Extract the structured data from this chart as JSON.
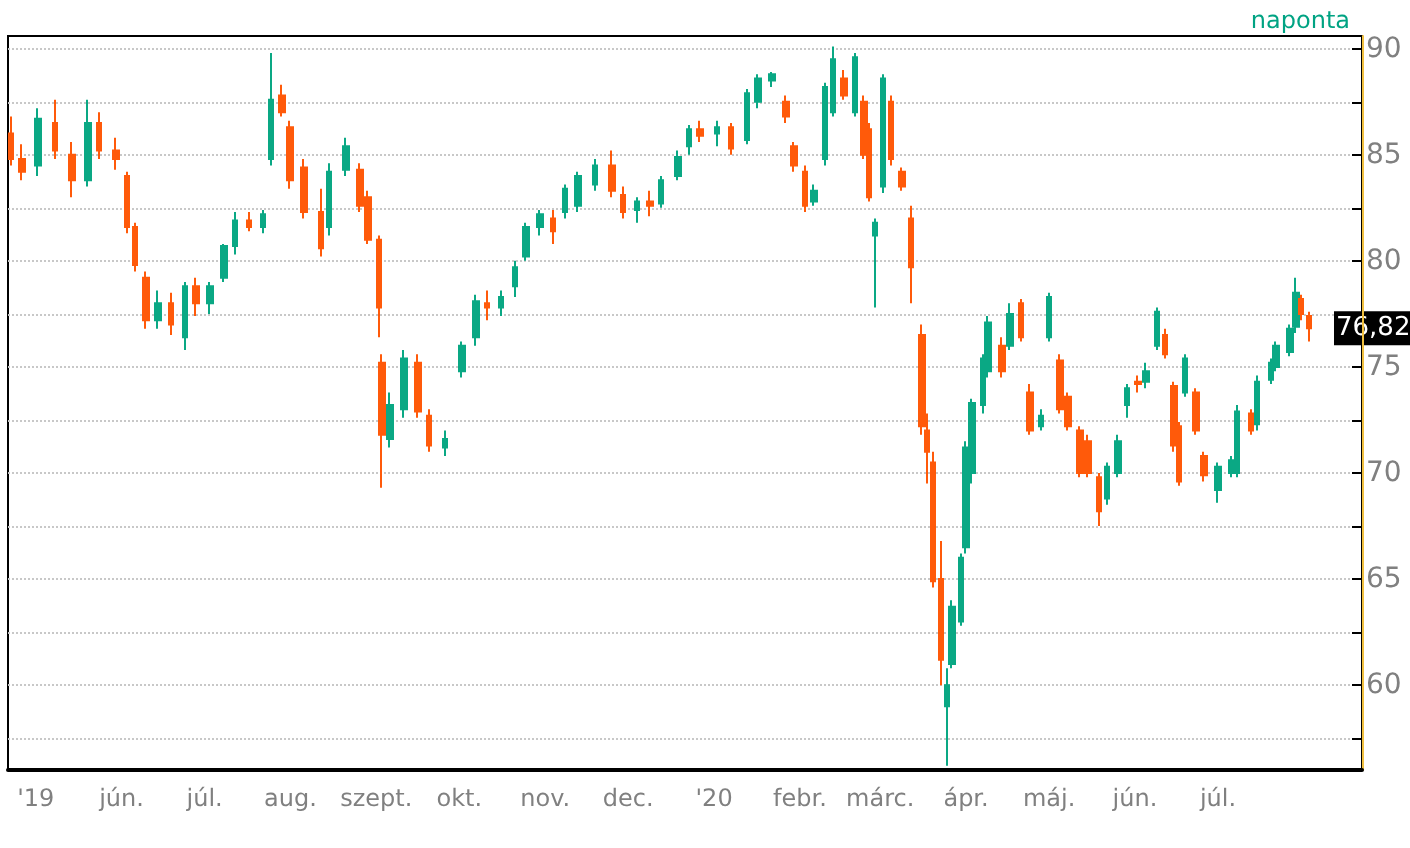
{
  "chart_data": {
    "type": "candlestick",
    "annotations": [
      "naponta",
      {
        "text": "76,82",
        "x": "2020-08-03",
        "y": 76.82
      }
    ],
    "x": [
      "2019-04-22",
      "2019-04-26",
      "2019-05-02",
      "2019-05-08",
      "2019-05-14",
      "2019-05-20",
      "2019-05-24",
      "2019-05-30",
      "2019-06-03",
      "2019-06-06",
      "2019-06-10",
      "2019-06-14",
      "2019-06-19",
      "2019-06-24",
      "2019-06-28",
      "2019-07-03",
      "2019-07-08",
      "2019-07-12",
      "2019-07-17",
      "2019-07-22",
      "2019-07-25",
      "2019-07-29",
      "2019-08-01",
      "2019-08-06",
      "2019-08-12",
      "2019-08-15",
      "2019-08-21",
      "2019-08-26",
      "2019-08-29",
      "2019-09-02",
      "2019-09-03",
      "2019-09-06",
      "2019-09-11",
      "2019-09-16",
      "2019-09-20",
      "2019-09-26",
      "2019-10-02",
      "2019-10-07",
      "2019-10-11",
      "2019-10-16",
      "2019-10-21",
      "2019-10-25",
      "2019-10-30",
      "2019-11-04",
      "2019-11-08",
      "2019-11-13",
      "2019-11-19",
      "2019-11-25",
      "2019-11-29",
      "2019-12-04",
      "2019-12-09",
      "2019-12-13",
      "2019-12-19",
      "2019-12-23",
      "2019-12-27",
      "2020-01-02",
      "2020-01-07",
      "2020-01-13",
      "2020-01-17",
      "2020-01-22",
      "2020-01-27",
      "2020-01-30",
      "2020-02-03",
      "2020-02-06",
      "2020-02-10",
      "2020-02-13",
      "2020-02-17",
      "2020-02-21",
      "2020-02-24",
      "2020-02-26",
      "2020-02-28",
      "2020-03-02",
      "2020-03-05",
      "2020-03-09",
      "2020-03-12",
      "2020-03-16",
      "2020-03-18",
      "2020-03-20",
      "2020-03-23",
      "2020-03-25",
      "2020-03-27",
      "2020-03-30",
      "2020-04-01",
      "2020-04-03",
      "2020-04-07",
      "2020-04-09",
      "2020-04-14",
      "2020-04-17",
      "2020-04-21",
      "2020-04-24",
      "2020-04-28",
      "2020-05-01",
      "2020-05-05",
      "2020-05-08",
      "2020-05-12",
      "2020-05-15",
      "2020-05-19",
      "2020-05-22",
      "2020-05-26",
      "2020-05-29",
      "2020-06-02",
      "2020-06-05",
      "2020-06-09",
      "2020-06-12",
      "2020-06-15",
      "2020-06-17",
      "2020-06-19",
      "2020-06-23",
      "2020-06-26",
      "2020-07-01",
      "2020-07-06",
      "2020-07-08",
      "2020-07-13",
      "2020-07-15",
      "2020-07-20",
      "2020-07-22",
      "2020-07-27",
      "2020-07-29",
      "2020-07-31",
      "2020-08-03"
    ],
    "ohlc": [
      [
        86.0,
        86.8,
        84.5,
        84.8
      ],
      [
        84.8,
        85.5,
        83.8,
        84.2
      ],
      [
        84.5,
        87.2,
        84.0,
        86.7
      ],
      [
        86.5,
        87.6,
        84.8,
        85.2
      ],
      [
        85.0,
        85.6,
        83.0,
        83.8
      ],
      [
        83.8,
        87.6,
        83.5,
        86.5
      ],
      [
        86.5,
        87.0,
        84.8,
        85.2
      ],
      [
        85.2,
        85.8,
        84.3,
        84.8
      ],
      [
        84.0,
        84.2,
        81.3,
        81.6
      ],
      [
        81.6,
        81.8,
        79.5,
        79.8
      ],
      [
        79.2,
        79.5,
        76.8,
        77.2
      ],
      [
        77.2,
        78.6,
        76.8,
        78.0
      ],
      [
        78.0,
        78.5,
        76.5,
        77.0
      ],
      [
        76.4,
        79.0,
        75.8,
        78.8
      ],
      [
        78.8,
        79.2,
        77.4,
        78.0
      ],
      [
        78.0,
        79.0,
        77.5,
        78.8
      ],
      [
        79.2,
        80.8,
        79.0,
        80.7
      ],
      [
        80.7,
        82.3,
        80.3,
        81.9
      ],
      [
        81.9,
        82.3,
        81.4,
        81.6
      ],
      [
        81.6,
        82.4,
        81.3,
        82.2
      ],
      [
        84.8,
        89.8,
        84.5,
        87.6
      ],
      [
        87.8,
        88.3,
        86.8,
        87.0
      ],
      [
        86.3,
        86.6,
        83.4,
        83.8
      ],
      [
        84.4,
        84.8,
        82.0,
        82.3
      ],
      [
        82.3,
        83.4,
        80.2,
        80.6
      ],
      [
        81.6,
        84.6,
        81.2,
        84.2
      ],
      [
        84.3,
        85.8,
        84.0,
        85.4
      ],
      [
        84.3,
        84.6,
        82.3,
        82.6
      ],
      [
        83.0,
        83.3,
        80.8,
        81.0
      ],
      [
        81.0,
        81.2,
        76.4,
        77.8
      ],
      [
        75.2,
        75.6,
        69.3,
        71.8
      ],
      [
        71.6,
        73.8,
        71.2,
        73.2
      ],
      [
        73.0,
        75.8,
        72.6,
        75.4
      ],
      [
        75.2,
        75.6,
        72.6,
        72.9
      ],
      [
        72.7,
        73.0,
        71.0,
        71.3
      ],
      [
        71.2,
        72.0,
        70.8,
        71.6
      ],
      [
        74.8,
        76.2,
        74.5,
        76.0
      ],
      [
        76.4,
        78.4,
        76.0,
        78.1
      ],
      [
        78.0,
        78.6,
        77.2,
        77.8
      ],
      [
        77.8,
        78.6,
        77.4,
        78.3
      ],
      [
        78.8,
        80.0,
        78.3,
        79.7
      ],
      [
        80.2,
        81.8,
        80.0,
        81.6
      ],
      [
        81.6,
        82.4,
        81.2,
        82.2
      ],
      [
        82.0,
        82.4,
        80.8,
        81.4
      ],
      [
        82.3,
        83.6,
        82.0,
        83.4
      ],
      [
        82.6,
        84.2,
        82.3,
        84.0
      ],
      [
        83.6,
        84.8,
        83.3,
        84.5
      ],
      [
        84.5,
        85.2,
        83.0,
        83.3
      ],
      [
        83.1,
        83.5,
        82.0,
        82.3
      ],
      [
        82.4,
        83.0,
        81.8,
        82.8
      ],
      [
        82.8,
        83.3,
        82.1,
        82.6
      ],
      [
        82.7,
        84.0,
        82.5,
        83.8
      ],
      [
        84.0,
        85.2,
        83.8,
        84.9
      ],
      [
        85.4,
        86.4,
        85.0,
        86.2
      ],
      [
        86.2,
        86.6,
        85.6,
        85.9
      ],
      [
        86.0,
        86.6,
        85.4,
        86.3
      ],
      [
        86.3,
        86.5,
        85.0,
        85.3
      ],
      [
        85.7,
        88.1,
        85.5,
        87.9
      ],
      [
        87.5,
        88.8,
        87.2,
        88.6
      ],
      [
        88.5,
        88.9,
        88.2,
        88.8
      ],
      [
        87.5,
        87.8,
        86.5,
        86.8
      ],
      [
        85.4,
        85.6,
        84.2,
        84.5
      ],
      [
        84.2,
        84.5,
        82.3,
        82.6
      ],
      [
        82.8,
        83.6,
        82.6,
        83.3
      ],
      [
        84.8,
        88.4,
        84.5,
        88.2
      ],
      [
        87.0,
        90.1,
        86.8,
        89.5
      ],
      [
        88.6,
        89.0,
        87.6,
        87.8
      ],
      [
        87.0,
        89.8,
        86.8,
        89.6
      ],
      [
        87.5,
        87.8,
        84.8,
        85.0
      ],
      [
        86.2,
        86.5,
        82.8,
        83.0
      ],
      [
        81.2,
        82.0,
        77.8,
        81.8
      ],
      [
        83.5,
        88.8,
        83.2,
        88.6
      ],
      [
        87.5,
        87.8,
        84.5,
        84.8
      ],
      [
        84.2,
        84.4,
        83.3,
        83.5
      ],
      [
        82.0,
        82.6,
        78.0,
        79.7
      ],
      [
        76.5,
        77.0,
        71.8,
        72.2
      ],
      [
        72.0,
        72.8,
        69.5,
        71.0
      ],
      [
        70.5,
        71.0,
        64.6,
        64.9
      ],
      [
        65.0,
        66.8,
        60.0,
        61.2
      ],
      [
        59.0,
        60.8,
        56.2,
        60.0
      ],
      [
        61.0,
        64.0,
        60.8,
        63.7
      ],
      [
        63.0,
        66.2,
        62.8,
        66.0
      ],
      [
        66.5,
        71.5,
        66.2,
        71.2
      ],
      [
        70.0,
        73.5,
        69.5,
        73.3
      ],
      [
        73.2,
        75.6,
        72.8,
        75.4
      ],
      [
        74.8,
        77.4,
        74.5,
        77.1
      ],
      [
        76.0,
        76.4,
        74.5,
        74.8
      ],
      [
        76.0,
        78.0,
        75.8,
        77.5
      ],
      [
        78.0,
        78.2,
        76.2,
        76.4
      ],
      [
        73.8,
        74.2,
        71.8,
        72.0
      ],
      [
        72.2,
        73.0,
        72.0,
        72.7
      ],
      [
        76.4,
        78.5,
        76.2,
        78.3
      ],
      [
        75.3,
        75.6,
        72.8,
        73.0
      ],
      [
        73.6,
        73.8,
        72.0,
        72.2
      ],
      [
        72.0,
        72.2,
        69.8,
        70.0
      ],
      [
        71.5,
        71.8,
        69.8,
        70.0
      ],
      [
        69.8,
        70.0,
        67.5,
        68.2
      ],
      [
        68.8,
        70.5,
        68.5,
        70.3
      ],
      [
        70.0,
        71.8,
        69.8,
        71.5
      ],
      [
        73.2,
        74.2,
        72.6,
        74.0
      ],
      [
        74.3,
        74.6,
        73.8,
        74.2
      ],
      [
        74.3,
        75.2,
        74.0,
        74.8
      ],
      [
        76.0,
        77.8,
        75.8,
        77.6
      ],
      [
        76.5,
        76.8,
        75.4,
        75.6
      ],
      [
        74.1,
        74.3,
        71.0,
        71.3
      ],
      [
        72.2,
        72.4,
        69.4,
        69.6
      ],
      [
        73.8,
        75.6,
        73.6,
        75.4
      ],
      [
        73.8,
        74.0,
        71.8,
        72.0
      ],
      [
        70.8,
        71.0,
        69.6,
        69.9
      ],
      [
        69.2,
        70.5,
        68.6,
        70.3
      ],
      [
        70.0,
        70.8,
        69.8,
        70.6
      ],
      [
        70.0,
        73.2,
        69.8,
        72.9
      ],
      [
        72.8,
        73.0,
        71.8,
        72.0
      ],
      [
        72.3,
        74.6,
        72.0,
        74.3
      ],
      [
        74.4,
        75.4,
        74.2,
        75.2
      ],
      [
        75.0,
        76.2,
        74.8,
        76.0
      ],
      [
        75.7,
        77.0,
        75.5,
        76.8
      ],
      [
        76.9,
        79.2,
        76.6,
        78.5
      ],
      [
        78.2,
        78.4,
        77.2,
        77.5
      ],
      [
        77.4,
        77.6,
        76.2,
        76.82
      ]
    ],
    "colors": [
      "#ff5a0a",
      "#ff5a0a",
      "#0aa884",
      "#ff5a0a",
      "#ff5a0a",
      "#0aa884",
      "#ff5a0a",
      "#ff5a0a",
      "#ff5a0a",
      "#ff5a0a",
      "#ff5a0a",
      "#0aa884",
      "#ff5a0a",
      "#0aa884",
      "#ff5a0a",
      "#0aa884",
      "#0aa884",
      "#0aa884",
      "#ff5a0a",
      "#0aa884",
      "#0aa884",
      "#ff5a0a",
      "#ff5a0a",
      "#ff5a0a",
      "#ff5a0a",
      "#0aa884",
      "#0aa884",
      "#ff5a0a",
      "#ff5a0a",
      "#ff5a0a",
      "#ff5a0a",
      "#0aa884",
      "#0aa884",
      "#ff5a0a",
      "#ff5a0a",
      "#0aa884",
      "#0aa884",
      "#0aa884",
      "#ff5a0a",
      "#0aa884",
      "#0aa884",
      "#0aa884",
      "#0aa884",
      "#ff5a0a",
      "#0aa884",
      "#0aa884",
      "#0aa884",
      "#ff5a0a",
      "#ff5a0a",
      "#0aa884",
      "#ff5a0a",
      "#0aa884",
      "#0aa884",
      "#0aa884",
      "#ff5a0a",
      "#0aa884",
      "#ff5a0a",
      "#0aa884",
      "#0aa884",
      "#0aa884",
      "#ff5a0a",
      "#ff5a0a",
      "#ff5a0a",
      "#0aa884",
      "#0aa884",
      "#0aa884",
      "#ff5a0a",
      "#0aa884",
      "#ff5a0a",
      "#ff5a0a",
      "#0aa884",
      "#0aa884",
      "#ff5a0a",
      "#ff5a0a",
      "#ff5a0a",
      "#ff5a0a",
      "#ff5a0a",
      "#ff5a0a",
      "#ff5a0a",
      "#0aa884",
      "#0aa884",
      "#0aa884",
      "#0aa884",
      "#0aa884",
      "#0aa884",
      "#0aa884",
      "#ff5a0a",
      "#0aa884",
      "#ff5a0a",
      "#ff5a0a",
      "#0aa884",
      "#0aa884",
      "#ff5a0a",
      "#ff5a0a",
      "#ff5a0a",
      "#ff5a0a",
      "#ff5a0a",
      "#0aa884",
      "#0aa884",
      "#0aa884",
      "#ff5a0a",
      "#0aa884",
      "#0aa884",
      "#ff5a0a",
      "#ff5a0a",
      "#ff5a0a",
      "#0aa884",
      "#ff5a0a",
      "#ff5a0a",
      "#0aa884",
      "#0aa884",
      "#0aa884",
      "#ff5a0a",
      "#0aa884",
      "#0aa884",
      "#0aa884",
      "#0aa884",
      "#0aa884",
      "#ff5a0a",
      "#ff5a0a"
    ],
    "xlim": [
      "2019-04-21",
      "2020-08-22"
    ],
    "xticks": [
      {
        "value": "2019-05-01",
        "label": "'19"
      },
      {
        "value": "2019-06-01",
        "label": "jún."
      },
      {
        "value": "2019-07-01",
        "label": "júl."
      },
      {
        "value": "2019-08-01",
        "label": "aug."
      },
      {
        "value": "2019-09-01",
        "label": "szept."
      },
      {
        "value": "2019-10-01",
        "label": "okt."
      },
      {
        "value": "2019-11-01",
        "label": "nov."
      },
      {
        "value": "2019-12-01",
        "label": "dec."
      },
      {
        "value": "2020-01-01",
        "label": "'20"
      },
      {
        "value": "2020-02-01",
        "label": "febr."
      },
      {
        "value": "2020-03-01",
        "label": "márc."
      },
      {
        "value": "2020-04-01",
        "label": "ápr."
      },
      {
        "value": "2020-05-01",
        "label": "máj."
      },
      {
        "value": "2020-06-01",
        "label": "jún."
      },
      {
        "value": "2020-07-01",
        "label": "júl."
      }
    ],
    "ylim": [
      56,
      90.6
    ],
    "yticks": [
      {
        "value": 57.5,
        "label": null
      },
      60,
      {
        "value": 62.5,
        "label": null
      },
      65,
      {
        "value": 67.5,
        "label": null
      },
      70,
      {
        "value": 72.5,
        "label": null
      },
      75,
      {
        "value": 77.5,
        "label": null
      },
      80,
      {
        "value": 82.5,
        "label": null
      },
      85,
      {
        "value": 87.5,
        "label": null
      },
      90
    ],
    "grid": "y"
  }
}
